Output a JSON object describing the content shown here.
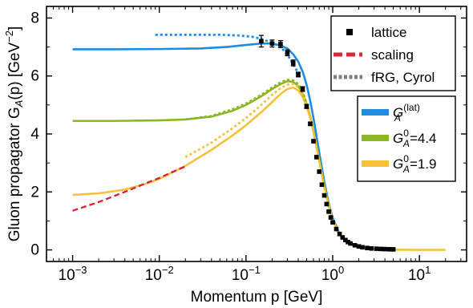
{
  "chart_data": {
    "type": "line",
    "xlabel": "Momentum p [GeV]",
    "ylabel": "Gluon propagator G",
    "ylabel_sub": "A",
    "ylabel_tail": "(p) [GeV",
    "ylabel_sup": "−2",
    "ylabel_close": "]",
    "x_scale": "log",
    "xlim": [
      0.0005,
      35
    ],
    "ylim": [
      -0.4,
      8.4
    ],
    "x_ticks": [
      {
        "value": 0.001,
        "base": "10",
        "exp": "−3"
      },
      {
        "value": 0.01,
        "base": "10",
        "exp": "−2"
      },
      {
        "value": 0.1,
        "base": "10",
        "exp": "−1"
      },
      {
        "value": 1,
        "base": "10",
        "exp": "0"
      },
      {
        "value": 10,
        "base": "10",
        "exp": "1"
      }
    ],
    "y_ticks": [
      0,
      2,
      4,
      6,
      8
    ],
    "y_tick_labels": [
      "0",
      "2",
      "4",
      "6",
      "8"
    ],
    "legend_top": [
      {
        "label": "lattice",
        "style": "marker",
        "color": "#000000"
      },
      {
        "label": "scaling",
        "style": "dashed",
        "color": "#d7263d"
      },
      {
        "label": "fRG, Cyrol",
        "style": "dotted",
        "color": "#7f7f7f"
      }
    ],
    "legend_bottom": [
      {
        "label_main": "G",
        "label_sub": "A",
        "label_sup": "(lat)",
        "label_tail": "",
        "color": "#1f8ce0"
      },
      {
        "label_main": "G",
        "label_sub": "A",
        "label_sup": "0",
        "label_tail": "=4.4",
        "color": "#8db624"
      },
      {
        "label_main": "G",
        "label_sub": "A",
        "label_sup": "0",
        "label_tail": "=1.9",
        "color": "#f6c23c"
      }
    ],
    "series": [
      {
        "name": "lattice",
        "kind": "points",
        "color": "#000000",
        "x": [
          0.15,
          0.2,
          0.25,
          0.3,
          0.35,
          0.4,
          0.45,
          0.5,
          0.55,
          0.6,
          0.65,
          0.7,
          0.75,
          0.8,
          0.85,
          0.9,
          0.95,
          1.0,
          1.1,
          1.2,
          1.3,
          1.4,
          1.5,
          1.6,
          1.8,
          2.0,
          2.2,
          2.5,
          2.8,
          3.2,
          3.6,
          4.0,
          4.5,
          5.0
        ],
        "y": [
          7.2,
          7.12,
          7.1,
          6.8,
          6.45,
          6.05,
          5.55,
          4.95,
          4.35,
          3.75,
          3.2,
          2.7,
          2.25,
          1.88,
          1.58,
          1.32,
          1.12,
          0.95,
          0.72,
          0.55,
          0.43,
          0.34,
          0.27,
          0.22,
          0.16,
          0.12,
          0.09,
          0.065,
          0.05,
          0.04,
          0.032,
          0.027,
          0.022,
          0.018
        ],
        "yerr": [
          0.2,
          0.12,
          0.12,
          0.1,
          0.1,
          0.08,
          0.08,
          0.07,
          0.06,
          0.05,
          0.05,
          0.04,
          0.04,
          0.03,
          0.03,
          0.03,
          0.02,
          0.02,
          0.02,
          0.02,
          0.02,
          0.01,
          0.01,
          0.01,
          0.01,
          0.01,
          0.01,
          0.01,
          0.01,
          0.01,
          0.01,
          0.01,
          0.01,
          0.01
        ]
      },
      {
        "name": "scaling",
        "kind": "dashed",
        "color": "#d7263d",
        "x": [
          0.001,
          0.002,
          0.004,
          0.007,
          0.01,
          0.015,
          0.02
        ],
        "y": [
          1.35,
          1.65,
          2.0,
          2.3,
          2.48,
          2.72,
          2.88
        ]
      },
      {
        "name": "fRG, Cyrol (upper)",
        "kind": "dotted",
        "color": "#1f8ce0",
        "x": [
          0.009,
          0.02,
          0.05,
          0.08,
          0.12,
          0.16,
          0.2,
          0.25,
          0.3,
          0.4
        ],
        "y": [
          7.42,
          7.42,
          7.42,
          7.4,
          7.35,
          7.25,
          7.15,
          7.0,
          6.75,
          6.1
        ]
      },
      {
        "name": "fRG, Cyrol (middle)",
        "kind": "dotted",
        "color": "#8db624",
        "x": [
          0.02,
          0.04,
          0.07,
          0.1,
          0.15,
          0.2,
          0.25,
          0.3,
          0.35,
          0.4,
          0.45,
          0.5
        ],
        "y": [
          4.5,
          4.62,
          4.85,
          5.05,
          5.35,
          5.6,
          5.78,
          5.87,
          5.85,
          5.72,
          5.45,
          5.05
        ]
      },
      {
        "name": "fRG, Cyrol (lower)",
        "kind": "dotted",
        "color": "#f6c23c",
        "x": [
          0.02,
          0.04,
          0.07,
          0.1,
          0.15,
          0.2,
          0.25,
          0.3,
          0.35,
          0.4,
          0.45,
          0.5
        ],
        "y": [
          3.2,
          3.7,
          4.2,
          4.55,
          5.0,
          5.35,
          5.58,
          5.7,
          5.72,
          5.62,
          5.4,
          5.0
        ]
      },
      {
        "name": "G_A^(lat)",
        "kind": "solid",
        "color": "#1f8ce0",
        "x": [
          0.001,
          0.003,
          0.01,
          0.03,
          0.06,
          0.1,
          0.15,
          0.2,
          0.25,
          0.3,
          0.35,
          0.4,
          0.45,
          0.5,
          0.55,
          0.6,
          0.7,
          0.8,
          0.9,
          1.0,
          1.2,
          1.5,
          2.0,
          3.0,
          5.0
        ],
        "y": [
          6.92,
          6.92,
          6.93,
          6.95,
          7.0,
          7.07,
          7.12,
          7.12,
          7.05,
          6.95,
          6.75,
          6.5,
          6.15,
          5.7,
          5.15,
          4.55,
          3.35,
          2.35,
          1.6,
          1.1,
          0.55,
          0.25,
          0.1,
          0.03,
          0.01
        ]
      },
      {
        "name": "G_A^0=4.4",
        "kind": "solid",
        "color": "#8db624",
        "x": [
          0.001,
          0.003,
          0.01,
          0.02,
          0.04,
          0.07,
          0.1,
          0.15,
          0.2,
          0.25,
          0.3,
          0.35,
          0.4,
          0.45,
          0.5,
          0.55,
          0.6,
          0.7,
          0.8,
          0.9,
          1.0,
          1.2,
          1.5,
          2.0,
          3.0,
          5.0
        ],
        "y": [
          4.45,
          4.45,
          4.47,
          4.5,
          4.6,
          4.8,
          5.0,
          5.3,
          5.55,
          5.72,
          5.82,
          5.8,
          5.65,
          5.4,
          5.05,
          4.6,
          4.1,
          3.1,
          2.2,
          1.55,
          1.05,
          0.52,
          0.24,
          0.09,
          0.03,
          0.01
        ]
      },
      {
        "name": "G_A^0=1.9",
        "kind": "solid",
        "color": "#f6c23c",
        "x": [
          0.001,
          0.002,
          0.004,
          0.007,
          0.01,
          0.02,
          0.04,
          0.07,
          0.1,
          0.15,
          0.2,
          0.25,
          0.3,
          0.35,
          0.4,
          0.45,
          0.5,
          0.55,
          0.6,
          0.7,
          0.8,
          0.9,
          1.0,
          1.2,
          1.5,
          2.0,
          3.0,
          5.0,
          10.0,
          20.0
        ],
        "y": [
          1.9,
          1.95,
          2.08,
          2.28,
          2.45,
          2.9,
          3.45,
          3.95,
          4.3,
          4.75,
          5.1,
          5.38,
          5.55,
          5.6,
          5.5,
          5.28,
          4.95,
          4.55,
          4.05,
          3.05,
          2.15,
          1.5,
          1.02,
          0.5,
          0.23,
          0.08,
          0.02,
          0.005,
          0.0,
          0.0
        ]
      }
    ]
  }
}
